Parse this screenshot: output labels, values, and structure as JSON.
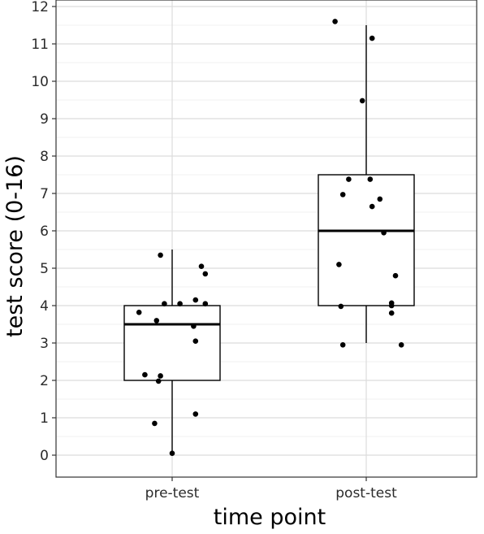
{
  "chart_data": {
    "type": "box",
    "title": "",
    "xlabel": "time point",
    "ylabel": "test score (0-16)",
    "ylim": [
      -0.6,
      12.2
    ],
    "yticks": [
      0,
      1,
      2,
      3,
      4,
      5,
      6,
      7,
      8,
      9,
      10,
      11,
      12
    ],
    "grid": true,
    "categories": [
      "pre-test",
      "post-test"
    ],
    "boxes": [
      {
        "q1": 2,
        "median": 3.5,
        "q3": 4,
        "whisker_low": 0,
        "whisker_high": 5.5
      },
      {
        "q1": 4,
        "median": 6,
        "q3": 7.5,
        "whisker_low": 3,
        "whisker_high": 11.5
      }
    ],
    "points": [
      [
        {
          "jitter": -0.06,
          "y": 5.35
        },
        {
          "jitter": 0.15,
          "y": 5.05
        },
        {
          "jitter": 0.17,
          "y": 4.85
        },
        {
          "jitter": -0.17,
          "y": 3.82
        },
        {
          "jitter": -0.04,
          "y": 4.05
        },
        {
          "jitter": 0.04,
          "y": 4.05
        },
        {
          "jitter": 0.12,
          "y": 4.15
        },
        {
          "jitter": 0.17,
          "y": 4.05
        },
        {
          "jitter": -0.08,
          "y": 3.6
        },
        {
          "jitter": 0.11,
          "y": 3.45
        },
        {
          "jitter": 0.12,
          "y": 3.05
        },
        {
          "jitter": -0.14,
          "y": 2.15
        },
        {
          "jitter": -0.06,
          "y": 2.12
        },
        {
          "jitter": -0.07,
          "y": 1.98
        },
        {
          "jitter": 0.12,
          "y": 1.1
        },
        {
          "jitter": -0.09,
          "y": 0.85
        },
        {
          "jitter": 0.0,
          "y": 0.05
        }
      ],
      [
        {
          "jitter": -0.16,
          "y": 11.6
        },
        {
          "jitter": 0.03,
          "y": 11.15
        },
        {
          "jitter": -0.02,
          "y": 9.48
        },
        {
          "jitter": -0.09,
          "y": 7.38
        },
        {
          "jitter": 0.02,
          "y": 7.38
        },
        {
          "jitter": -0.12,
          "y": 6.97
        },
        {
          "jitter": 0.07,
          "y": 6.85
        },
        {
          "jitter": 0.03,
          "y": 6.65
        },
        {
          "jitter": 0.09,
          "y": 5.95
        },
        {
          "jitter": -0.14,
          "y": 5.1
        },
        {
          "jitter": 0.15,
          "y": 4.8
        },
        {
          "jitter": 0.13,
          "y": 4.07
        },
        {
          "jitter": 0.13,
          "y": 4.0
        },
        {
          "jitter": -0.13,
          "y": 3.98
        },
        {
          "jitter": 0.13,
          "y": 3.8
        },
        {
          "jitter": -0.12,
          "y": 2.95
        },
        {
          "jitter": 0.18,
          "y": 2.95
        }
      ]
    ]
  }
}
